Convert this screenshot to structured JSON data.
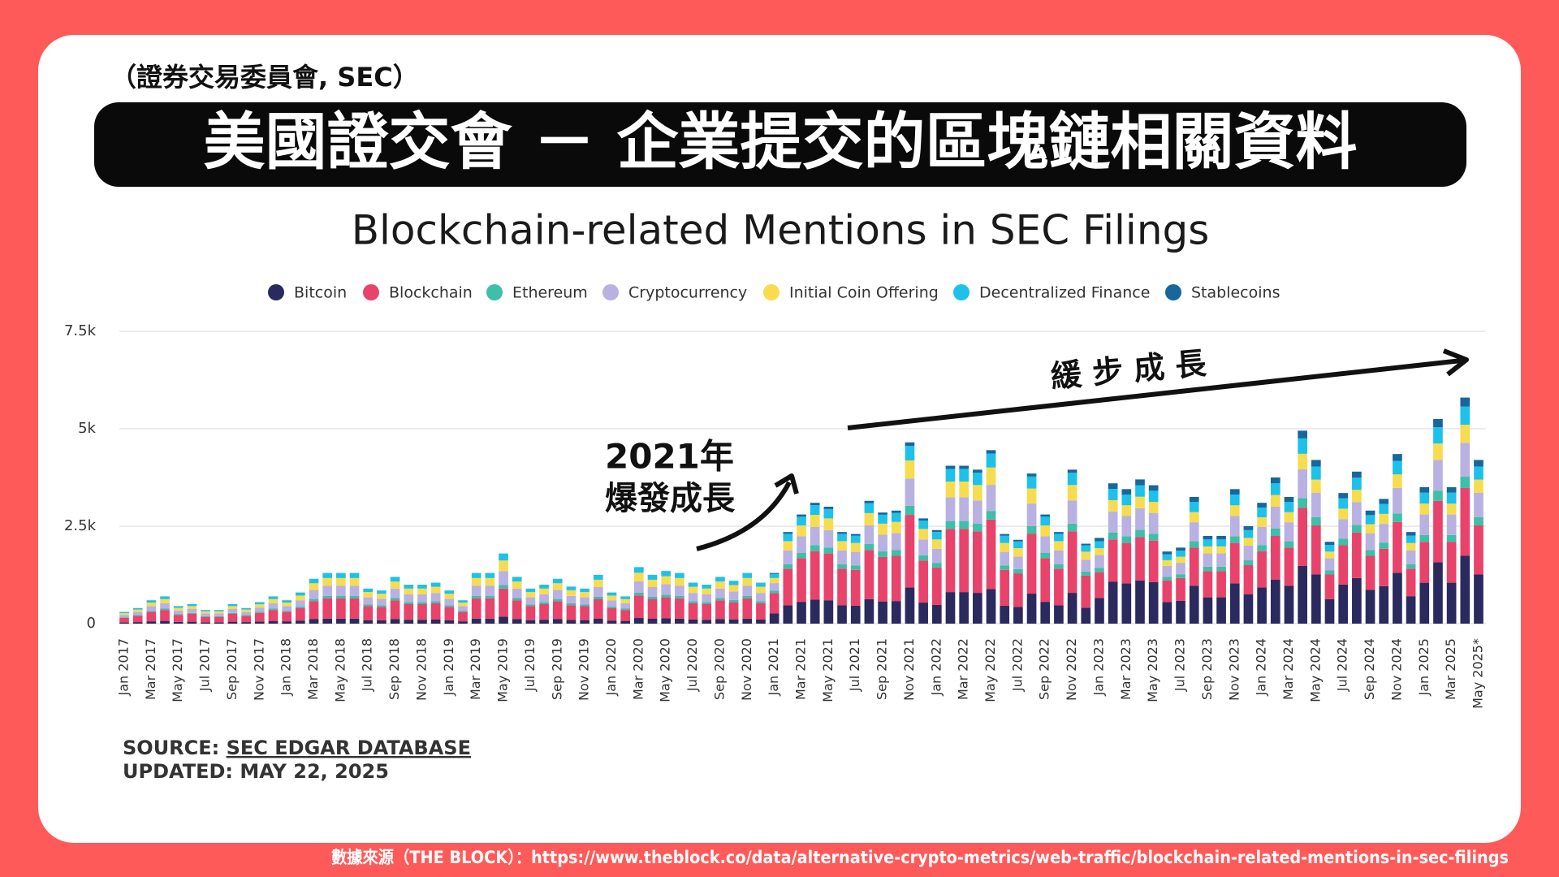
{
  "header": {
    "subtitle": "（證券交易委員會, SEC）",
    "title": "美國證交會 － 企業提交的區塊鏈相關資料"
  },
  "annotations": {
    "growth_slow": "緩 步 成 長",
    "year": "2021年",
    "growth_boom": "爆發成長"
  },
  "source": {
    "label": "SOURCE:",
    "name": "SEC EDGAR DATABASE",
    "updated": "UPDATED: MAY 22, 2025"
  },
  "footer": "數據來源（THE BLOCK）：https://www.theblock.co/data/alternative-crypto-metrics/web-traffic/blockchain-related-mentions-in-sec-filings",
  "chart_data": {
    "type": "stacked_bar",
    "title": "Blockchain-related Mentions in SEC Filings",
    "categories": [
      "Jan 2017",
      null,
      "Mar 2017",
      null,
      "May 2017",
      null,
      "Jul 2017",
      null,
      "Sep 2017",
      null,
      "Nov 2017",
      null,
      "Jan 2018",
      null,
      "Mar 2018",
      null,
      "May 2018",
      null,
      "Jul 2018",
      null,
      "Sep 2018",
      null,
      "Nov 2018",
      null,
      "Jan 2019",
      null,
      "Mar 2019",
      null,
      "May 2019",
      null,
      "Jul 2019",
      null,
      "Sep 2019",
      null,
      "Nov 2019",
      null,
      "Jan 2020",
      null,
      "Mar 2020",
      null,
      "May 2020",
      null,
      "Jul 2020",
      null,
      "Sep 2020",
      null,
      "Nov 2020",
      null,
      "Jan 2021",
      null,
      "Mar 2021",
      null,
      "May 2021",
      null,
      "Jul 2021",
      null,
      "Sep 2021",
      null,
      "Nov 2021",
      null,
      "Jan 2022",
      null,
      "Mar 2022",
      null,
      "May 2022",
      null,
      "Jul 2022",
      null,
      "Sep 2022",
      null,
      "Nov 2022",
      null,
      "Jan 2023",
      null,
      "Mar 2023",
      null,
      "May 2023",
      null,
      "Jul 2023",
      null,
      "Sep 2023",
      null,
      "Nov 2023",
      null,
      "Jan 2024",
      null,
      "Mar 2024",
      null,
      "May 2024",
      null,
      "Jul 2024",
      null,
      "Sep 2024",
      null,
      "Nov 2024",
      null,
      "Jan 2025",
      null,
      "Mar 2025",
      null,
      "May 2025*"
    ],
    "series": [
      {
        "name": "Bitcoin",
        "color": "#2b2a5e",
        "values": [
          30,
          40,
          60,
          70,
          45,
          50,
          35,
          35,
          50,
          40,
          55,
          70,
          60,
          80,
          115,
          130,
          130,
          130,
          90,
          85,
          120,
          100,
          100,
          105,
          85,
          60,
          130,
          130,
          180,
          120,
          90,
          100,
          115,
          95,
          90,
          125,
          80,
          70,
          145,
          125,
          135,
          130,
          105,
          100,
          120,
          110,
          130,
          105,
          260,
          470,
          560,
          620,
          600,
          470,
          460,
          630,
          570,
          580,
          930,
          540,
          480,
          810,
          810,
          790,
          890,
          460,
          430,
          770,
          560,
          470,
          790,
          410,
          660,
          1080,
          1035,
          1110,
          1065,
          555,
          585,
          975,
          675,
          675,
          1035,
          750,
          930,
          1125,
          975,
          1485,
          1260,
          630,
          1005,
          1170,
          870,
          960,
          1305,
          705,
          1050,
          1575,
          1050,
          1740,
          1260
        ]
      },
      {
        "name": "Blockchain",
        "color": "#e8436a",
        "values": [
          120,
          160,
          240,
          280,
          180,
          200,
          140,
          140,
          200,
          160,
          220,
          280,
          240,
          320,
          460,
          520,
          520,
          520,
          360,
          340,
          480,
          400,
          400,
          420,
          340,
          240,
          520,
          520,
          720,
          480,
          360,
          400,
          460,
          380,
          360,
          500,
          320,
          280,
          580,
          500,
          540,
          520,
          420,
          400,
          480,
          440,
          520,
          420,
          520,
          940,
          1120,
          1240,
          1200,
          940,
          920,
          1260,
          1140,
          1160,
          1860,
          1080,
          960,
          1620,
          1620,
          1580,
          1780,
          920,
          860,
          1540,
          1120,
          940,
          1580,
          820,
          660,
          1080,
          1035,
          1110,
          1065,
          555,
          585,
          975,
          675,
          675,
          1035,
          750,
          930,
          1125,
          975,
          1485,
          1260,
          630,
          1005,
          1170,
          870,
          960,
          1305,
          705,
          1050,
          1575,
          1050,
          1740,
          1260
        ]
      },
      {
        "name": "Ethereum",
        "color": "#3dbfa8",
        "values": [
          15,
          20,
          30,
          35,
          23,
          25,
          18,
          18,
          25,
          20,
          28,
          35,
          30,
          40,
          58,
          65,
          65,
          65,
          45,
          43,
          60,
          50,
          50,
          53,
          43,
          30,
          65,
          65,
          90,
          60,
          45,
          50,
          58,
          48,
          45,
          63,
          40,
          35,
          73,
          63,
          68,
          65,
          53,
          50,
          60,
          55,
          65,
          53,
          65,
          118,
          140,
          155,
          150,
          118,
          115,
          158,
          143,
          145,
          233,
          135,
          120,
          203,
          203,
          198,
          223,
          115,
          108,
          193,
          140,
          118,
          198,
          103,
          110,
          180,
          173,
          185,
          178,
          93,
          98,
          163,
          113,
          113,
          173,
          125,
          155,
          188,
          163,
          248,
          210,
          105,
          168,
          195,
          145,
          160,
          218,
          118,
          175,
          263,
          175,
          290,
          210
        ]
      },
      {
        "name": "Cryptocurrency",
        "color": "#b9b1e2",
        "values": [
          60,
          80,
          120,
          140,
          90,
          100,
          70,
          70,
          100,
          80,
          110,
          140,
          120,
          160,
          230,
          260,
          260,
          260,
          180,
          170,
          240,
          200,
          200,
          210,
          170,
          120,
          260,
          260,
          360,
          240,
          180,
          200,
          230,
          190,
          180,
          250,
          160,
          140,
          290,
          250,
          270,
          260,
          210,
          200,
          240,
          220,
          260,
          210,
          195,
          353,
          420,
          465,
          450,
          353,
          345,
          473,
          428,
          435,
          698,
          405,
          360,
          608,
          608,
          593,
          668,
          345,
          323,
          578,
          420,
          353,
          593,
          308,
          330,
          540,
          518,
          555,
          533,
          278,
          293,
          488,
          338,
          338,
          518,
          375,
          465,
          563,
          488,
          743,
          630,
          315,
          503,
          585,
          435,
          480,
          653,
          353,
          525,
          788,
          525,
          870,
          630
        ]
      },
      {
        "name": "Initial Coin Offering",
        "color": "#f7dc4f",
        "values": [
          45,
          60,
          90,
          105,
          68,
          75,
          53,
          53,
          75,
          60,
          83,
          105,
          90,
          120,
          173,
          195,
          195,
          195,
          135,
          128,
          180,
          150,
          150,
          158,
          128,
          90,
          195,
          195,
          270,
          180,
          135,
          150,
          173,
          143,
          135,
          188,
          120,
          105,
          218,
          188,
          203,
          195,
          158,
          150,
          180,
          165,
          195,
          158,
          130,
          235,
          280,
          310,
          300,
          235,
          230,
          315,
          285,
          290,
          465,
          270,
          240,
          405,
          405,
          395,
          445,
          230,
          215,
          385,
          280,
          235,
          395,
          205,
          176,
          288,
          276,
          296,
          284,
          148,
          156,
          260,
          180,
          180,
          276,
          200,
          248,
          300,
          260,
          396,
          336,
          168,
          268,
          312,
          232,
          256,
          348,
          188,
          280,
          420,
          280,
          464,
          336
        ]
      },
      {
        "name": "Decentralized Finance",
        "color": "#1ec1ea",
        "values": [
          30,
          40,
          60,
          70,
          45,
          50,
          35,
          35,
          50,
          40,
          55,
          70,
          60,
          80,
          115,
          130,
          130,
          130,
          90,
          85,
          120,
          100,
          100,
          105,
          85,
          60,
          130,
          130,
          180,
          120,
          90,
          100,
          115,
          95,
          90,
          125,
          80,
          70,
          145,
          125,
          135,
          130,
          105,
          100,
          120,
          110,
          130,
          105,
          104,
          188,
          224,
          248,
          240,
          188,
          184,
          252,
          228,
          232,
          372,
          216,
          192,
          324,
          324,
          316,
          356,
          184,
          172,
          308,
          224,
          188,
          316,
          164,
          176,
          288,
          276,
          296,
          284,
          148,
          156,
          260,
          180,
          180,
          276,
          200,
          248,
          300,
          260,
          396,
          336,
          168,
          268,
          312,
          232,
          256,
          348,
          188,
          280,
          420,
          280,
          464,
          336
        ]
      },
      {
        "name": "Stablecoins",
        "color": "#17669c",
        "values": [
          0,
          0,
          0,
          0,
          0,
          0,
          0,
          0,
          0,
          0,
          0,
          0,
          0,
          0,
          0,
          0,
          0,
          0,
          0,
          0,
          0,
          0,
          0,
          0,
          0,
          0,
          0,
          0,
          0,
          0,
          0,
          0,
          0,
          0,
          0,
          0,
          0,
          0,
          0,
          0,
          0,
          0,
          0,
          0,
          0,
          0,
          0,
          0,
          26,
          47,
          56,
          62,
          60,
          47,
          46,
          63,
          57,
          58,
          93,
          54,
          48,
          81,
          81,
          79,
          89,
          46,
          43,
          77,
          56,
          47,
          79,
          41,
          88,
          144,
          138,
          148,
          142,
          74,
          78,
          130,
          90,
          90,
          138,
          100,
          124,
          150,
          130,
          198,
          168,
          84,
          134,
          156,
          116,
          128,
          174,
          94,
          140,
          210,
          140,
          232,
          168
        ]
      }
    ],
    "ylim": [
      0,
      7500
    ],
    "yticks": [
      0,
      {
        "value": 2500,
        "label": "2.5k"
      },
      {
        "value": 5000,
        "label": "5k"
      },
      {
        "value": 7500,
        "label": "7.5k"
      }
    ],
    "grid": true,
    "legend": "top"
  }
}
